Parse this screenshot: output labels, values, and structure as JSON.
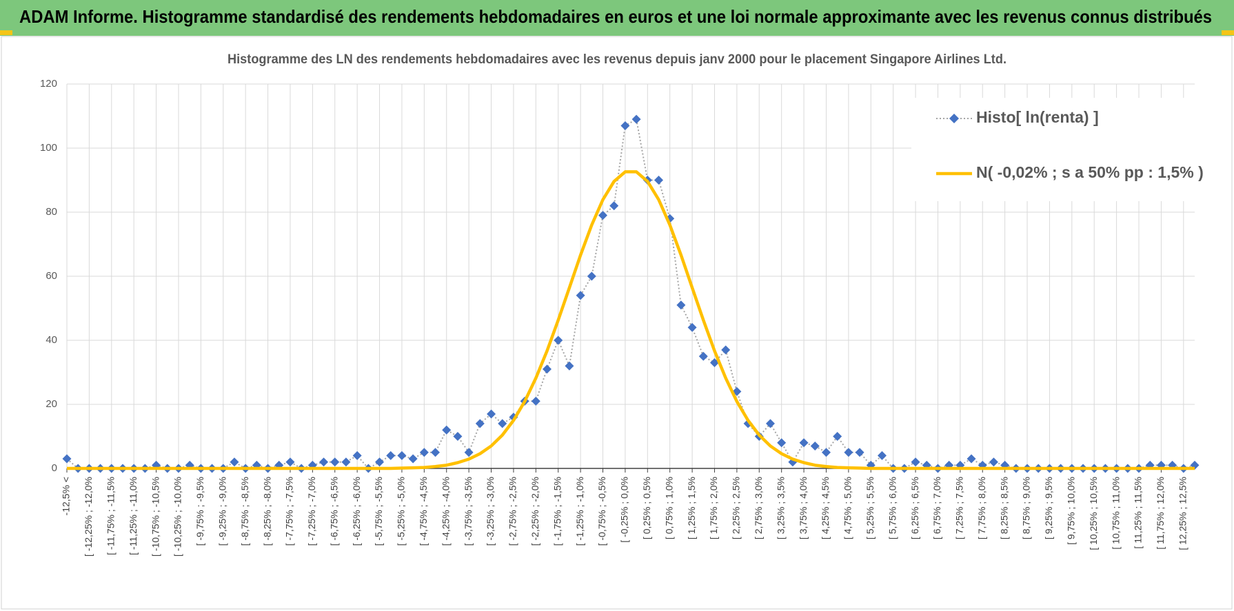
{
  "header": {
    "title": "ADAM Informe. Histogramme standardisé des rendements hebdomadaires en euros et une loi normale approximante avec les revenus connus distribués"
  },
  "chart_data": {
    "type": "line",
    "title": "Histogramme  des LN des rendements hebdomadaires avec les revenus depuis janv 2000 pour le placement Singapore Airlines  Ltd.",
    "categories": [
      "-12,5% <",
      null,
      "[ -12,25% ; -12,0%",
      null,
      "[ -11,75% ; -11,5%",
      null,
      "[ -11,25% ; -11,0%",
      null,
      "[ -10,75% ; -10,5%",
      null,
      "[ -10,25% ; -10,0%",
      null,
      "[ -9,75% ; -9,5%",
      null,
      "[ -9,25% ; -9,0%",
      null,
      "[ -8,75% ; -8,5%",
      null,
      "[ -8,25% ; -8,0%",
      null,
      "[ -7,75% ; -7,5%",
      null,
      "[ -7,25% ; -7,0%",
      null,
      "[ -6,75% ; -6,5%",
      null,
      "[ -6,25% ; -6,0%",
      null,
      "[ -5,75% ; -5,5%",
      null,
      "[ -5,25% ; -5,0%",
      null,
      "[ -4,75% ; -4,5%",
      null,
      "[ -4,25% ; -4,0%",
      null,
      "[ -3,75% ; -3,5%",
      null,
      "[ -3,25% ; -3,0%",
      null,
      "[ -2,75% ; -2,5%",
      null,
      "[ -2,25% ; -2,0%",
      null,
      "[ -1,75% ; -1,5%",
      null,
      "[ -1,25% ; -1,0%",
      null,
      "[ -0,75% ; -0,5%",
      null,
      "[ -0,25% ; 0,0%",
      null,
      "[ 0,25% ; 0,5%",
      null,
      "[ 0,75% ; 1,0%",
      null,
      "[ 1,25% ; 1,5%",
      null,
      "[ 1,75% ; 2,0%",
      null,
      "[ 2,25% ; 2,5%",
      null,
      "[ 2,75% ; 3,0%",
      null,
      "[ 3,25% ; 3,5%",
      null,
      "[ 3,75% ; 4,0%",
      null,
      "[ 4,25% ; 4,5%",
      null,
      "[ 4,75% ; 5,0%",
      null,
      "[ 5,25% ; 5,5%",
      null,
      "[ 5,75% ; 6,0%",
      null,
      "[ 6,25% ; 6,5%",
      null,
      "[ 6,75% ; 7,0%",
      null,
      "[ 7,25% ; 7,5%",
      null,
      "[ 7,75% ; 8,0%",
      null,
      "[ 8,25% ; 8,5%",
      null,
      "[ 8,75% ; 9,0%",
      null,
      "[ 9,25% ; 9,5%",
      null,
      "[ 9,75% ; 10,0%",
      null,
      "[ 10,25% ; 10,5%",
      null,
      "[ 10,75% ; 11,0%",
      null,
      "[ 11,25% ; 11,5%",
      null,
      "[ 11,75% ; 12,0%",
      null,
      "[ 12,25% ; 12,5%",
      null
    ],
    "series": [
      {
        "name": "Histo[ ln(renta) ]",
        "color": "#4472c4",
        "line_color": "#a5a5a5",
        "line_style": "dotted",
        "marker": "diamond",
        "values": [
          3,
          0,
          0,
          0,
          0,
          0,
          0,
          0,
          1,
          0,
          0,
          1,
          0,
          0,
          0,
          2,
          0,
          1,
          0,
          1,
          2,
          0,
          1,
          2,
          2,
          2,
          4,
          0,
          2,
          4,
          4,
          3,
          5,
          5,
          12,
          10,
          5,
          14,
          17,
          14,
          16,
          21,
          21,
          31,
          40,
          32,
          54,
          60,
          79,
          82,
          107,
          109,
          90,
          90,
          78,
          51,
          44,
          35,
          33,
          37,
          24,
          14,
          10,
          14,
          8,
          2,
          8,
          7,
          5,
          10,
          5,
          5,
          1,
          4,
          0,
          0,
          2,
          1,
          0,
          1,
          1,
          3,
          1,
          2,
          1,
          0,
          0,
          0,
          0,
          0,
          0,
          0,
          0,
          0,
          0,
          0,
          0,
          1,
          1,
          1,
          0,
          1
        ]
      },
      {
        "name": "N( -0,02% ; s a 50% pp : 1,5% )",
        "color": "#ffc000",
        "line_style": "solid",
        "marker": "none",
        "values": [
          0,
          0,
          0,
          0,
          0,
          0,
          0,
          0,
          0,
          0,
          0,
          0,
          0,
          0,
          0,
          0,
          0,
          0,
          0,
          0,
          0,
          0,
          0,
          0,
          0,
          0,
          0,
          0,
          0,
          0,
          0.1,
          0.2,
          0.3,
          0.6,
          1.0,
          1.8,
          2.9,
          4.6,
          7.0,
          10.4,
          15.0,
          20.9,
          28.2,
          36.7,
          46.3,
          56.4,
          66.6,
          76.0,
          83.9,
          89.6,
          92.6,
          92.6,
          89.6,
          83.9,
          76.0,
          66.6,
          56.4,
          46.3,
          36.7,
          28.2,
          20.9,
          15.0,
          10.4,
          7.0,
          4.6,
          2.9,
          1.8,
          1.0,
          0.6,
          0.3,
          0.2,
          0.1,
          0,
          0,
          0,
          0,
          0,
          0,
          0,
          0,
          0,
          0,
          0,
          0,
          0,
          0,
          0,
          0,
          0,
          0,
          0,
          0,
          0,
          0,
          0,
          0,
          0,
          0,
          0,
          0,
          0,
          0
        ]
      }
    ],
    "ylim": [
      0,
      120
    ],
    "yticks": [
      0,
      20,
      40,
      60,
      80,
      100,
      120
    ],
    "grid": true,
    "legend": "top-right"
  }
}
